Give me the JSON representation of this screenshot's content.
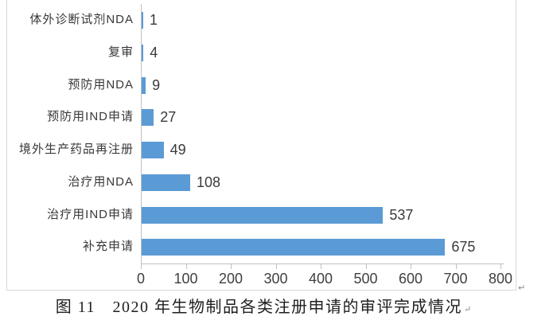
{
  "figure": {
    "caption": "图 11　2020 年生物制品各类注册申请的审评完成情况",
    "paragraph_mark": "↵"
  },
  "chart_data": {
    "type": "bar",
    "orientation": "horizontal",
    "title": "",
    "xlabel": "",
    "ylabel": "",
    "categories": [
      "体外诊断试剂NDA",
      "复审",
      "预防用NDA",
      "预防用IND申请",
      "境外生产药品再注册",
      "治疗用NDA",
      "治疗用IND申请",
      "补充申请"
    ],
    "values": [
      1,
      4,
      9,
      27,
      49,
      108,
      537,
      675
    ],
    "x_ticks": [
      0,
      100,
      200,
      300,
      400,
      500,
      600,
      700,
      800
    ],
    "xlim": [
      0,
      800
    ],
    "value_labels_shown": true,
    "grid": false,
    "legend": false,
    "colors": {
      "bar_fill": "#5b9bd5",
      "axis_line": "#bfbfbf",
      "tick_label": "#3f3f3f",
      "category_label": "#383838",
      "value_label": "#3a3a3a",
      "frame_border": "#d9d9d9"
    }
  }
}
